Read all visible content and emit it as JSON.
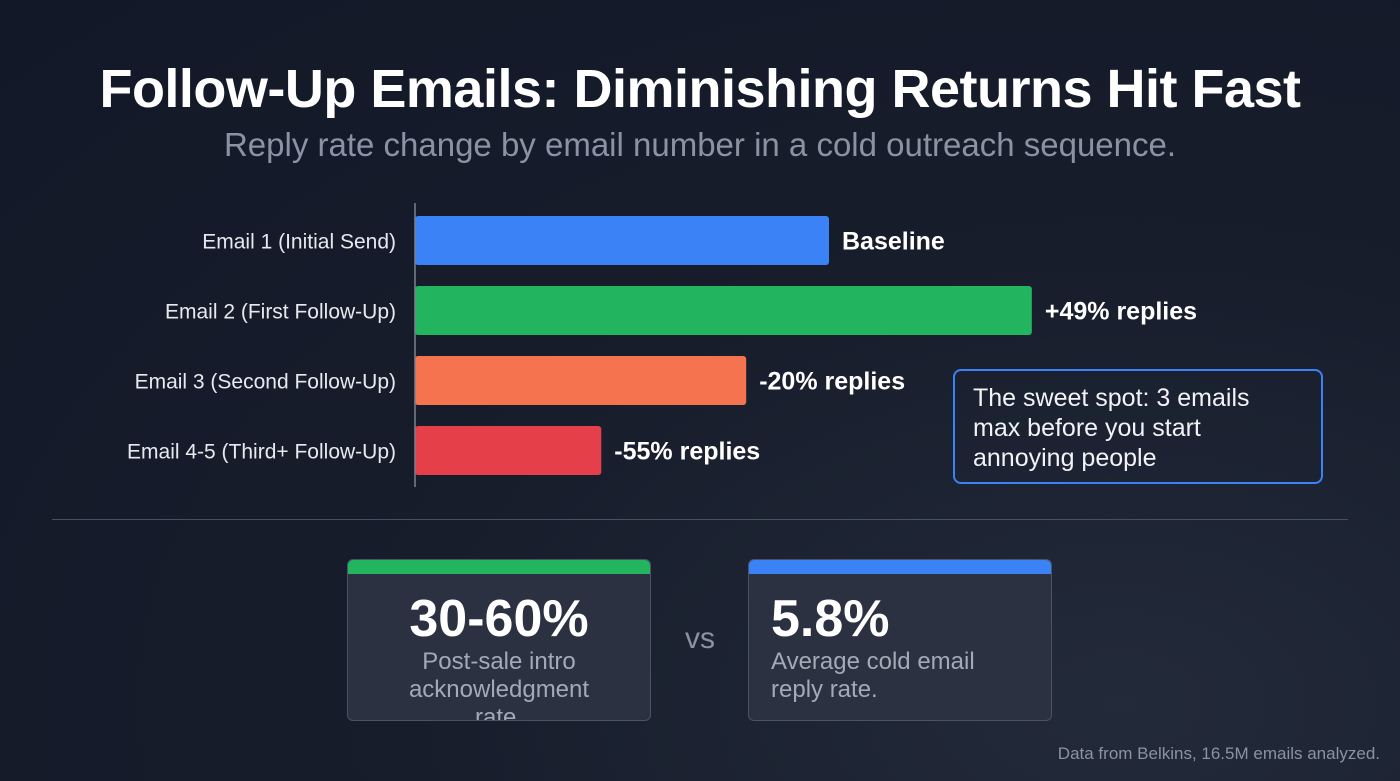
{
  "header": {
    "title": "Follow-Up Emails: Diminishing Returns Hit Fast",
    "subtitle": "Reply rate change by email number in a cold outreach sequence."
  },
  "chart_data": {
    "type": "bar",
    "orientation": "horizontal",
    "categories": [
      "Email 1 (Initial Send)",
      "Email 2 (First Follow-Up)",
      "Email 3 (Second Follow-Up)",
      "Email 4-5 (Third+ Follow-Up)"
    ],
    "values": [
      0,
      49,
      -20,
      -55
    ],
    "unit": "% change in replies vs baseline",
    "data_labels": [
      "Baseline",
      "+49% replies",
      "-20% replies",
      "-55% replies"
    ],
    "colors": [
      "#3b82f6",
      "#22b45e",
      "#f5734e",
      "#e5404a"
    ],
    "grid": false
  },
  "callout": "The sweet spot: 3 emails max before you start annoying people",
  "stats": [
    {
      "value": "30-60%",
      "label": "Post-sale intro acknowledgment rate.",
      "color": "#22b45e"
    },
    {
      "value": "5.8%",
      "label": "Average cold email reply rate.",
      "color": "#3b82f6"
    }
  ],
  "vs": "vs",
  "source": "Data from Belkins, 16.5M emails analyzed."
}
